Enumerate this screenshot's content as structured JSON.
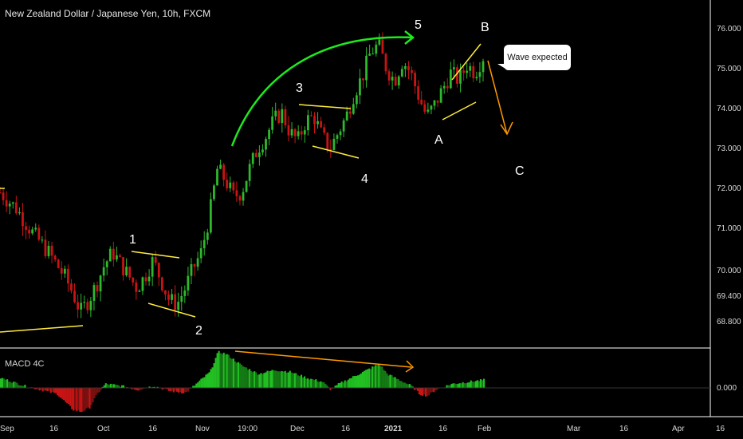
{
  "header": {
    "title": "New Zealand Dollar / Japanese Yen, 10h, FXCM"
  },
  "callout": {
    "text": "Wave expected"
  },
  "macd": {
    "label": "MACD 4C",
    "zero_label": "0.000"
  },
  "colors": {
    "up": "#2eb82e",
    "down": "#c81414",
    "pattern": "#ffeb3b",
    "arc": "#1ee81e",
    "projection": "#ff9800",
    "axis_text": "#d8d8d8"
  },
  "chart_data": {
    "type": "candlestick",
    "price_axis_ticks": [
      "76.000",
      "75.000",
      "74.000",
      "73.000",
      "72.000",
      "71.000",
      "70.000",
      "69.400",
      "68.800"
    ],
    "time_axis_ticks": [
      "Sep",
      "16",
      "Oct",
      "16",
      "Nov",
      "19:00",
      "Dec",
      "16",
      "2021",
      "16",
      "Feb",
      "Mar",
      "16",
      "Apr",
      "16"
    ],
    "ylim": [
      68.0,
      77.0
    ],
    "wave_labels": [
      "1",
      "2",
      "3",
      "4",
      "5",
      "A",
      "B",
      "C"
    ],
    "trend": [
      [
        0,
        71.9
      ],
      [
        2,
        71.5
      ],
      [
        4,
        70.9
      ],
      [
        6,
        70.4
      ],
      [
        8,
        69.8
      ],
      [
        9,
        69.4
      ],
      [
        10,
        68.9
      ],
      [
        11,
        69.2
      ],
      [
        12,
        69.6
      ],
      [
        13,
        70.1
      ],
      [
        14,
        70.4
      ],
      [
        15,
        70.1
      ],
      [
        16,
        69.8
      ],
      [
        17,
        69.5
      ],
      [
        18,
        69.8
      ],
      [
        19,
        70.2
      ],
      [
        20,
        69.7
      ],
      [
        21,
        69.2
      ],
      [
        22,
        69.1
      ],
      [
        23,
        69.5
      ],
      [
        24,
        70.0
      ],
      [
        25,
        70.4
      ],
      [
        26,
        71.3
      ],
      [
        27,
        72.5
      ],
      [
        28,
        72.2
      ],
      [
        29,
        71.8
      ],
      [
        30,
        71.9
      ],
      [
        31,
        72.5
      ],
      [
        32,
        73.0
      ],
      [
        33,
        73.3
      ],
      [
        34,
        73.7
      ],
      [
        35,
        73.9
      ],
      [
        36,
        73.4
      ],
      [
        37,
        73.2
      ],
      [
        38,
        73.7
      ],
      [
        39,
        73.8
      ],
      [
        40,
        73.3
      ],
      [
        41,
        73.0
      ],
      [
        42,
        73.4
      ],
      [
        43,
        73.8
      ],
      [
        44,
        74.4
      ],
      [
        45,
        74.8
      ],
      [
        46,
        75.4
      ],
      [
        47,
        75.6
      ],
      [
        48,
        75.0
      ],
      [
        49,
        74.7
      ],
      [
        50,
        75.2
      ],
      [
        51,
        74.9
      ],
      [
        52,
        74.3
      ],
      [
        53,
        73.8
      ],
      [
        54,
        74.1
      ],
      [
        55,
        74.5
      ],
      [
        56,
        74.9
      ],
      [
        57,
        74.7
      ],
      [
        58,
        75.1
      ],
      [
        59,
        74.9
      ],
      [
        60,
        75.3
      ]
    ],
    "macd_values": [
      [
        0,
        0.25
      ],
      [
        3,
        0.05
      ],
      [
        5,
        -0.05
      ],
      [
        7,
        -0.15
      ],
      [
        9,
        -0.55
      ],
      [
        10,
        -0.6
      ],
      [
        11,
        -0.5
      ],
      [
        12,
        -0.15
      ],
      [
        13,
        0.1
      ],
      [
        15,
        0.05
      ],
      [
        17,
        -0.05
      ],
      [
        19,
        0.05
      ],
      [
        21,
        -0.08
      ],
      [
        23,
        -0.12
      ],
      [
        24,
        0.05
      ],
      [
        26,
        0.4
      ],
      [
        27,
        0.9
      ],
      [
        28,
        0.85
      ],
      [
        30,
        0.55
      ],
      [
        32,
        0.35
      ],
      [
        34,
        0.45
      ],
      [
        36,
        0.4
      ],
      [
        38,
        0.25
      ],
      [
        40,
        0.15
      ],
      [
        41,
        -0.05
      ],
      [
        42,
        0.1
      ],
      [
        44,
        0.3
      ],
      [
        46,
        0.5
      ],
      [
        47,
        0.6
      ],
      [
        48,
        0.35
      ],
      [
        50,
        0.15
      ],
      [
        51,
        0.05
      ],
      [
        52,
        -0.15
      ],
      [
        53,
        -0.2
      ],
      [
        54,
        -0.05
      ],
      [
        56,
        0.1
      ],
      [
        58,
        0.15
      ],
      [
        60,
        0.2
      ]
    ]
  }
}
